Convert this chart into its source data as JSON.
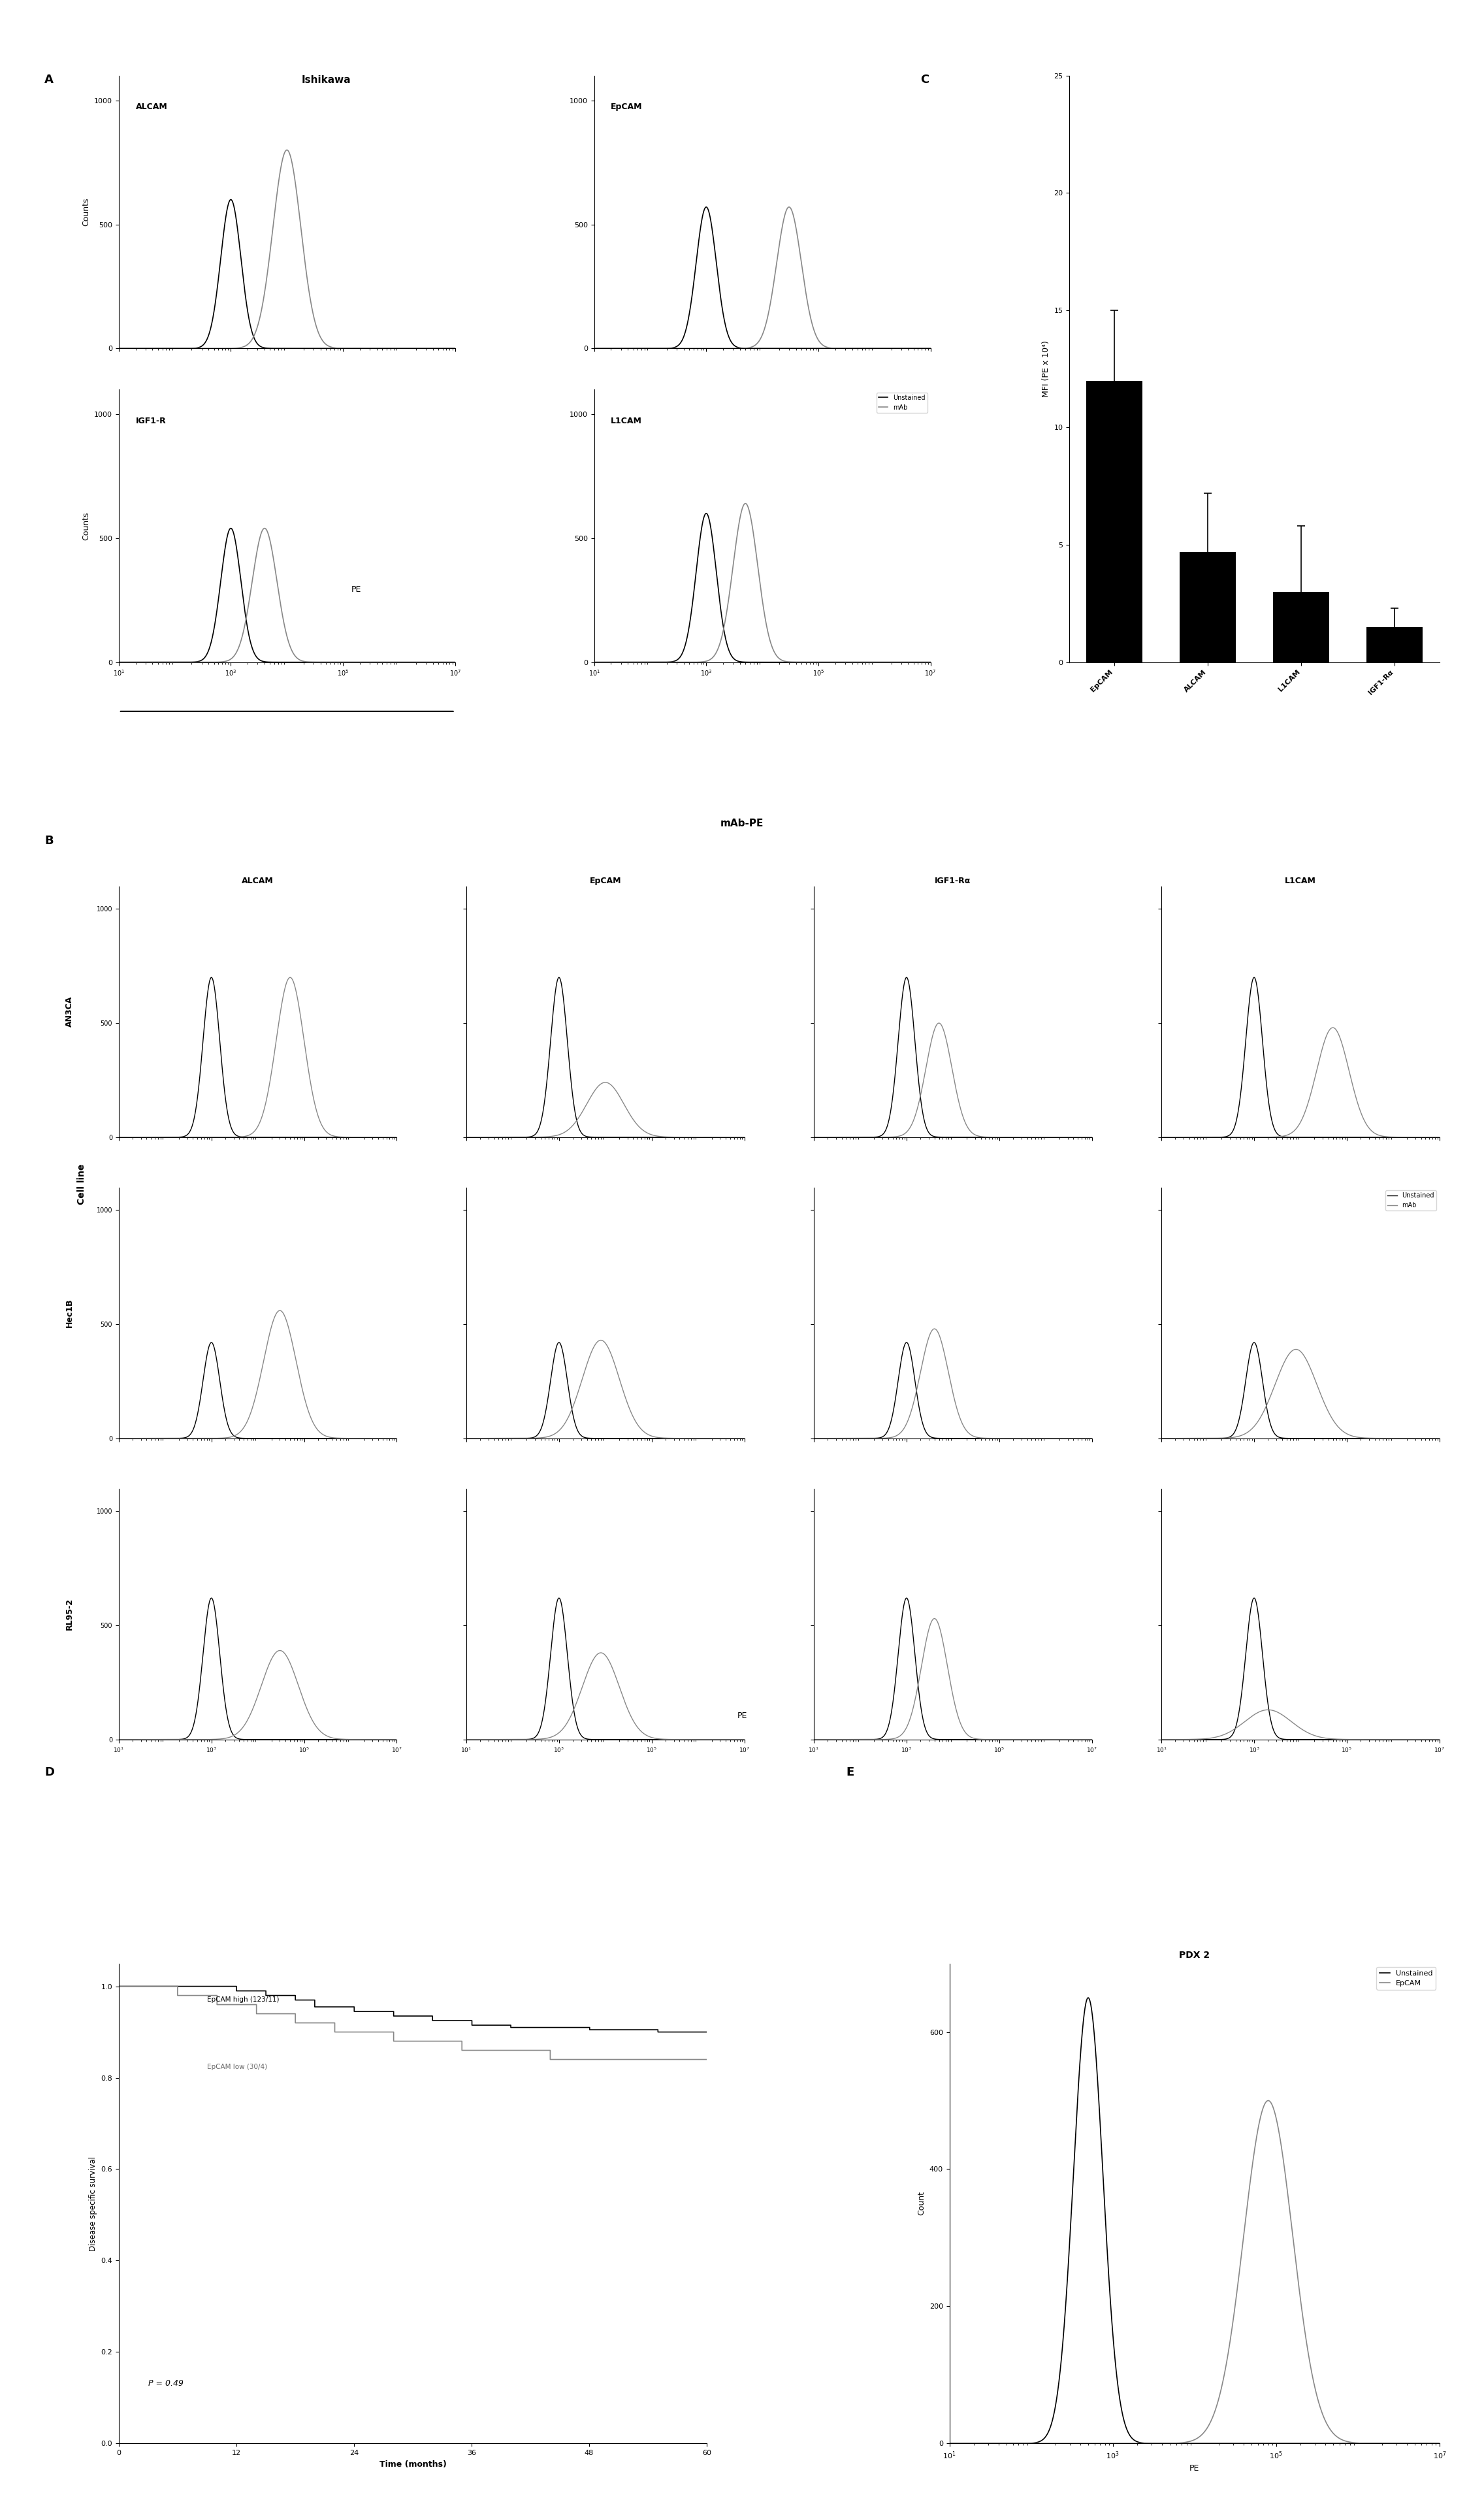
{
  "title_A": "Ishikawa",
  "panel_A_labels": [
    "ALCAM",
    "EpCAM",
    "IGF1-R",
    "L1CAM"
  ],
  "panel_A_xlabel": "PE",
  "panel_A_ylabel": "Counts",
  "panel_A_yticks": [
    0,
    500,
    1000
  ],
  "panel_A_xlim_log": [
    10,
    10000000.0
  ],
  "panel_C_title": "C",
  "panel_C_categories": [
    "EpCAM",
    "ALCAM",
    "L1CAM",
    "IGF1-Rα"
  ],
  "panel_C_values": [
    12.0,
    4.7,
    3.0,
    1.5
  ],
  "panel_C_errors": [
    3.0,
    2.5,
    2.8,
    0.8
  ],
  "panel_C_ylabel": "MFI (PE x 10⁴)",
  "panel_C_ylim": [
    0,
    25
  ],
  "panel_C_yticks": [
    0,
    5,
    10,
    15,
    20,
    25
  ],
  "panel_C_bar_color": "#000000",
  "title_B": "mAb-PE",
  "panel_B_cols": [
    "ALCAM",
    "EpCAM",
    "IGF1-Rα",
    "L1CAM"
  ],
  "panel_B_rows": [
    "AN3CA",
    "Hec1B",
    "RL95-2"
  ],
  "panel_B_ylabel": "Cell line",
  "panel_B_xlabel_shared": "PE",
  "legend_unstained": "Unstained",
  "legend_mab": "mAb",
  "color_unstained": "#000000",
  "color_mab": "#999999",
  "panel_D_title": "D",
  "panel_D_xlabel": "Time (months)",
  "panel_D_ylabel": "Disease specific survival",
  "panel_D_pvalue": "P = 0.49",
  "panel_D_line1_label": "EpCAM high (123/11)",
  "panel_D_line2_label": "EpCAM low (30/4)",
  "panel_D_xlim": [
    0,
    60
  ],
  "panel_D_ylim": [
    0,
    1.0
  ],
  "panel_D_xticks": [
    0,
    12,
    24,
    36,
    48,
    60
  ],
  "panel_D_yticks": [
    0.0,
    0.2,
    0.4,
    0.6,
    0.8,
    1.0
  ],
  "panel_E_title": "PDX 2",
  "panel_E_xlabel": "PE",
  "panel_E_ylabel": "Count",
  "panel_E_legend1": "Unstained",
  "panel_E_legend2": "EpCAM",
  "panel_E_ylim": [
    0,
    700
  ],
  "panel_E_yticks": [
    0,
    200,
    400,
    600
  ],
  "panel_E_xlim_log": [
    10,
    10000000.0
  ]
}
